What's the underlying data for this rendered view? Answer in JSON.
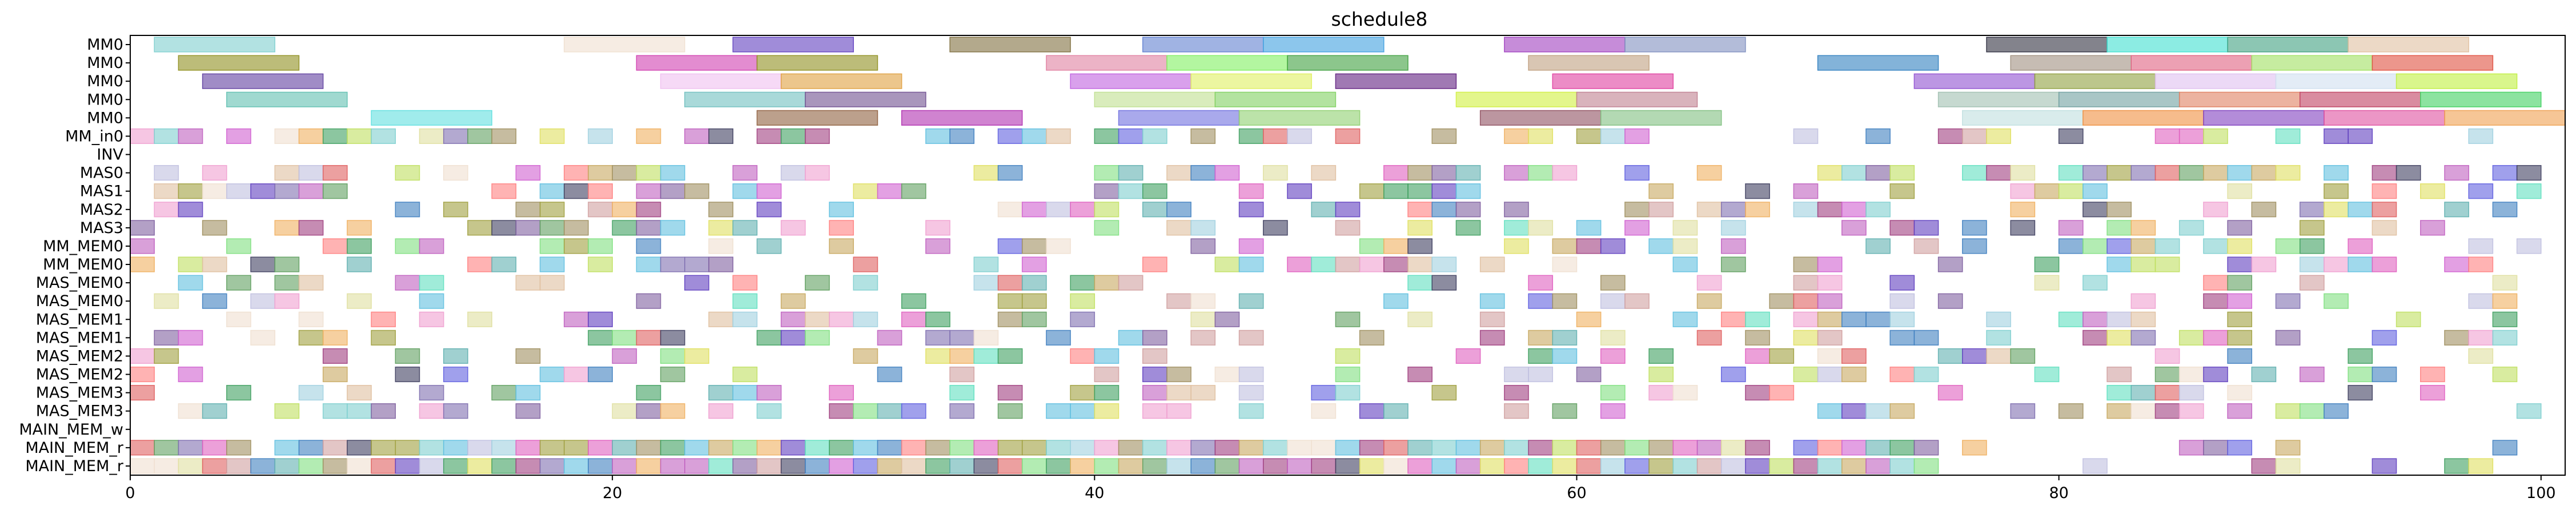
{
  "chart_data": {
    "type": "gantt",
    "title": "schedule8",
    "xlabel": "",
    "ylabel": "",
    "xlim": [
      0,
      101
    ],
    "x_ticks": [
      0,
      20,
      40,
      60,
      80,
      100
    ],
    "rows": [
      "MM0",
      "MM0",
      "MM0",
      "MM0",
      "MM0",
      "MM_in0",
      "INV",
      "MAS0",
      "MAS1",
      "MAS2",
      "MAS3",
      "MM_MEM0",
      "MM_MEM0",
      "MAS_MEM0",
      "MAS_MEM0",
      "MAS_MEM1",
      "MAS_MEM1",
      "MAS_MEM2",
      "MAS_MEM2",
      "MAS_MEM3",
      "MAS_MEM3",
      "MAIN_MEM_w",
      "MAIN_MEM_r",
      "MAIN_MEM_r"
    ],
    "palette": [
      "#7fcfcf",
      "#a0a040",
      "#8070b0",
      "#c8a860",
      "#60b0b0",
      "#e060c0",
      "#f0b060",
      "#6040c0",
      "#a09060",
      "#8060a0",
      "#4080c0",
      "#60a060",
      "#a04080",
      "#60c0e0",
      "#c060c0",
      "#e0e060",
      "#d0a0a0",
      "#80e080",
      "#c0e060",
      "#60e0c0",
      "#404060",
      "#ff8080",
      "#e06060",
      "#c0c0e0",
      "#e0c0a0",
      "#a0d0e0",
      "#f0a0d0",
      "#d060d0",
      "#40a060",
      "#6060e0",
      "#e0e0a0",
      "#f0e0d0"
    ],
    "bars": [
      {
        "row": 0,
        "start": 1,
        "end": 6,
        "color": "#7fcfcf"
      },
      {
        "row": 0,
        "start": 18,
        "end": 23,
        "color": "#f0e0d0"
      },
      {
        "row": 0,
        "start": 25,
        "end": 30,
        "color": "#6040c0"
      },
      {
        "row": 0,
        "start": 34,
        "end": 39,
        "color": "#807040"
      },
      {
        "row": 0,
        "start": 42,
        "end": 47,
        "color": "#6080d0"
      },
      {
        "row": 0,
        "start": 47,
        "end": 52,
        "color": "#40a0e0"
      },
      {
        "row": 0,
        "start": 57,
        "end": 62,
        "color": "#a040c0"
      },
      {
        "row": 0,
        "start": 62,
        "end": 67,
        "color": "#8090c0"
      },
      {
        "row": 0,
        "start": 77,
        "end": 82,
        "color": "#303040"
      },
      {
        "row": 0,
        "start": 82,
        "end": 87,
        "color": "#40e0d0"
      },
      {
        "row": 0,
        "start": 87,
        "end": 92,
        "color": "#40a080"
      },
      {
        "row": 0,
        "start": 92,
        "end": 97,
        "color": "#e0c0a0"
      },
      {
        "row": 1,
        "start": 2,
        "end": 7,
        "color": "#909020"
      },
      {
        "row": 1,
        "start": 21,
        "end": 26,
        "color": "#d040b0"
      },
      {
        "row": 1,
        "start": 26,
        "end": 31,
        "color": "#909020"
      },
      {
        "row": 1,
        "start": 38,
        "end": 43,
        "color": "#e080a0"
      },
      {
        "row": 1,
        "start": 43,
        "end": 48,
        "color": "#80f060"
      },
      {
        "row": 1,
        "start": 48,
        "end": 53,
        "color": "#40a040"
      },
      {
        "row": 1,
        "start": 58,
        "end": 63,
        "color": "#c0a080"
      },
      {
        "row": 1,
        "start": 70,
        "end": 75,
        "color": "#3080c0"
      },
      {
        "row": 1,
        "start": 78,
        "end": 83,
        "color": "#a09080"
      },
      {
        "row": 1,
        "start": 83,
        "end": 88,
        "color": "#e06080"
      },
      {
        "row": 1,
        "start": 88,
        "end": 93,
        "color": "#a0e060"
      },
      {
        "row": 1,
        "start": 93,
        "end": 98,
        "color": "#e05040"
      },
      {
        "row": 2,
        "start": 3,
        "end": 8,
        "color": "#6040a0"
      },
      {
        "row": 2,
        "start": 22,
        "end": 27,
        "color": "#f0c0f0"
      },
      {
        "row": 2,
        "start": 27,
        "end": 32,
        "color": "#e0a040"
      },
      {
        "row": 2,
        "start": 39,
        "end": 44,
        "color": "#c060e0"
      },
      {
        "row": 2,
        "start": 44,
        "end": 49,
        "color": "#e0f060"
      },
      {
        "row": 2,
        "start": 50,
        "end": 55,
        "color": "#602080"
      },
      {
        "row": 2,
        "start": 59,
        "end": 64,
        "color": "#e040a0"
      },
      {
        "row": 2,
        "start": 74,
        "end": 79,
        "color": "#9050d0"
      },
      {
        "row": 2,
        "start": 79,
        "end": 84,
        "color": "#90a040"
      },
      {
        "row": 2,
        "start": 84,
        "end": 89,
        "color": "#e0c0f0"
      },
      {
        "row": 2,
        "start": 89,
        "end": 94,
        "color": "#d0e0f0"
      },
      {
        "row": 2,
        "start": 94,
        "end": 99,
        "color": "#c0f040"
      },
      {
        "row": 3,
        "start": 4,
        "end": 9,
        "color": "#60c0b0"
      },
      {
        "row": 3,
        "start": 23,
        "end": 28,
        "color": "#70c0c0"
      },
      {
        "row": 3,
        "start": 28,
        "end": 33,
        "color": "#705090"
      },
      {
        "row": 3,
        "start": 40,
        "end": 45,
        "color": "#c0e090"
      },
      {
        "row": 3,
        "start": 45,
        "end": 50,
        "color": "#80d060"
      },
      {
        "row": 3,
        "start": 55,
        "end": 60,
        "color": "#d0f040"
      },
      {
        "row": 3,
        "start": 60,
        "end": 65,
        "color": "#c08090"
      },
      {
        "row": 3,
        "start": 75,
        "end": 80,
        "color": "#a0c0b0"
      },
      {
        "row": 3,
        "start": 80,
        "end": 85,
        "color": "#70a0a0"
      },
      {
        "row": 3,
        "start": 85,
        "end": 90,
        "color": "#e08060"
      },
      {
        "row": 3,
        "start": 90,
        "end": 95,
        "color": "#c04060"
      },
      {
        "row": 3,
        "start": 95,
        "end": 100,
        "color": "#40d060"
      },
      {
        "row": 4,
        "start": 10,
        "end": 15,
        "color": "#60e0e0"
      },
      {
        "row": 4,
        "start": 26,
        "end": 31,
        "color": "#906040"
      },
      {
        "row": 4,
        "start": 32,
        "end": 37,
        "color": "#b030b0"
      },
      {
        "row": 4,
        "start": 41,
        "end": 46,
        "color": "#7070e0"
      },
      {
        "row": 4,
        "start": 46,
        "end": 51,
        "color": "#90d070"
      },
      {
        "row": 4,
        "start": 56,
        "end": 61,
        "color": "#905060"
      },
      {
        "row": 4,
        "start": 61,
        "end": 66,
        "color": "#80c080"
      },
      {
        "row": 4,
        "start": 76,
        "end": 81,
        "color": "#c0e0e0"
      },
      {
        "row": 4,
        "start": 81,
        "end": 86,
        "color": "#f09040"
      },
      {
        "row": 4,
        "start": 86,
        "end": 91,
        "color": "#8040c0"
      },
      {
        "row": 4,
        "start": 91,
        "end": 96,
        "color": "#e050a0"
      },
      {
        "row": 4,
        "start": 96,
        "end": 101,
        "color": "#f0a050"
      }
    ],
    "cell_fill": 0.42,
    "cell_seed": 8
  }
}
